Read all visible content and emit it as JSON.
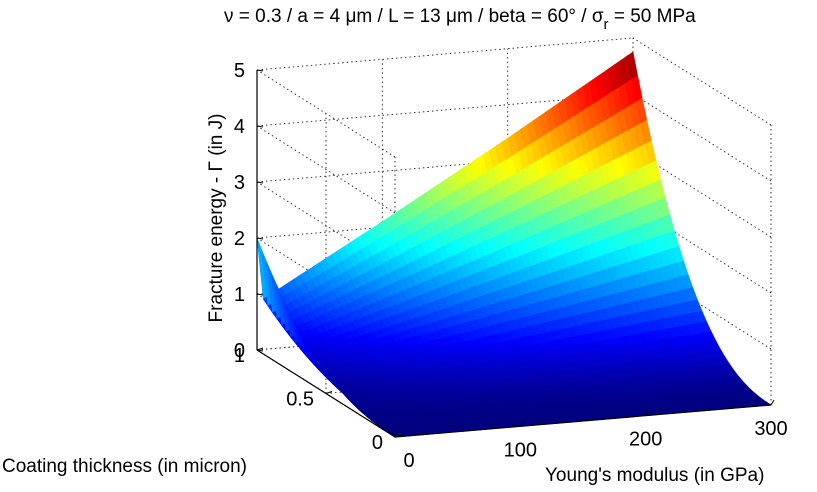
{
  "chart_data": {
    "type": "surface",
    "title": "ν = 0.3 / a = 4  μm / L = 13  μm / beta = 60° /  σ",
    "title_subscript": "r",
    "title_suffix": " = 50 MPa",
    "xlabel": "Young's modulus (in GPa)",
    "ylabel": "Coating thickness (in micron)",
    "zlabel": "Fracture energy -  Γ  (in J)",
    "xlim": [
      0,
      300
    ],
    "ylim": [
      0,
      1
    ],
    "zlim": [
      0,
      5
    ],
    "x_ticks": [
      0,
      100,
      200,
      300
    ],
    "y_ticks": [
      0,
      0.5,
      1
    ],
    "z_ticks": [
      0,
      1,
      2,
      3,
      4,
      5
    ],
    "grid": true,
    "colormap": "jet",
    "surface_corners": [
      {
        "x": 0,
        "y": 0,
        "z": 0
      },
      {
        "x": 300,
        "y": 0,
        "z": 0.02
      },
      {
        "x": 0,
        "y": 1,
        "z": 2.0
      },
      {
        "x": 300,
        "y": 1,
        "z": 4.75
      }
    ],
    "x_profile_at_y1": [
      {
        "x": 0,
        "z": 2.0
      },
      {
        "x": 5,
        "z": 0.9
      },
      {
        "x": 100,
        "z": 2.1
      },
      {
        "x": 200,
        "z": 3.4
      },
      {
        "x": 300,
        "z": 4.75
      }
    ]
  }
}
